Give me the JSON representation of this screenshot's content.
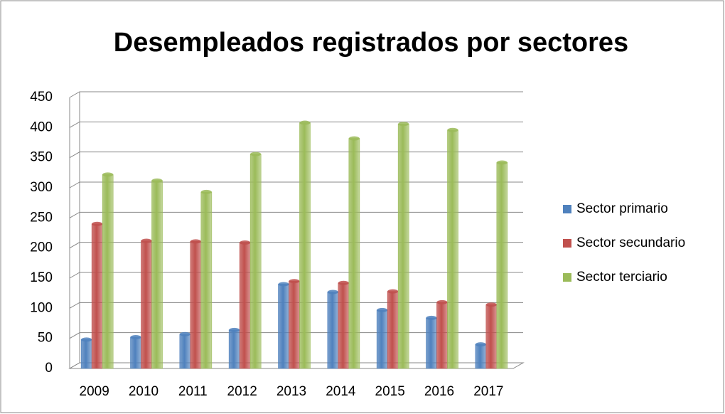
{
  "chart_data": {
    "type": "bar",
    "title": "Desempleados registrados por sectores",
    "categories": [
      "2009",
      "2010",
      "2011",
      "2012",
      "2013",
      "2014",
      "2015",
      "2016",
      "2017"
    ],
    "series": [
      {
        "name": "Sector primario",
        "color": "#4f81bd",
        "values": [
          48,
          52,
          57,
          64,
          140,
          127,
          97,
          84,
          40
        ]
      },
      {
        "name": "Sector secundario",
        "color": "#c0504d",
        "values": [
          240,
          212,
          211,
          209,
          145,
          142,
          128,
          110,
          106
        ]
      },
      {
        "name": "Sector terciario",
        "color": "#9bbb59",
        "values": [
          322,
          312,
          293,
          356,
          408,
          382,
          406,
          396,
          342
        ]
      }
    ],
    "ylim": [
      0,
      450
    ],
    "yticks": [
      0,
      50,
      100,
      150,
      200,
      250,
      300,
      350,
      400,
      450
    ],
    "grid": true,
    "legend": "right"
  }
}
